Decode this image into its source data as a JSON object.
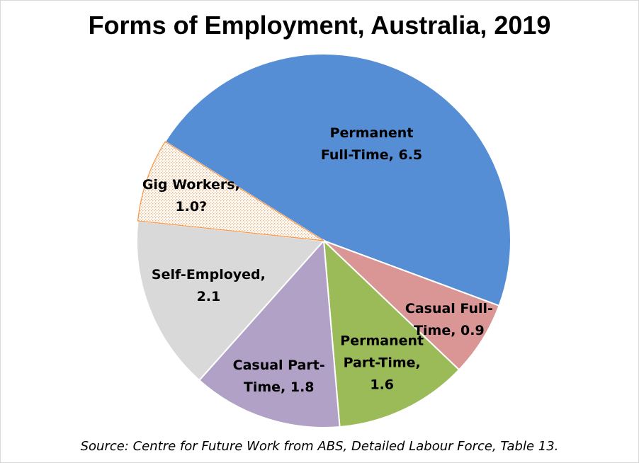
{
  "chart_data": {
    "type": "pie",
    "title": "Forms of Employment, Australia, 2019",
    "source": "Source: Centre for Future Work from ABS, Detailed Labour Force, Table 13.",
    "slices": [
      {
        "label": "Permanent Full-Time, 6.5",
        "lines": [
          "Permanent",
          "Full-Time, 6.5"
        ],
        "value": 6.5,
        "color": "#558ed5",
        "pattern": false
      },
      {
        "label": "Casual Full-Time, 0.9",
        "lines": [
          "Casual Full-",
          "Time, 0.9"
        ],
        "value": 0.9,
        "color": "#d99694",
        "pattern": false
      },
      {
        "label": "Permanent Part-Time, 1.6",
        "lines": [
          "Permanent",
          "Part-Time,",
          "1.6"
        ],
        "value": 1.6,
        "color": "#9bbb59",
        "pattern": false
      },
      {
        "label": "Casual Part-Time, 1.8",
        "lines": [
          "Casual Part-",
          "Time, 1.8"
        ],
        "value": 1.8,
        "color": "#b2a1c7",
        "pattern": false
      },
      {
        "label": "Self-Employed, 2.1",
        "lines": [
          "Self-Employed,",
          "2.1"
        ],
        "value": 2.1,
        "color": "#d9d9d9",
        "pattern": false
      },
      {
        "label": "Gig Workers, 1.0?",
        "lines": [
          "Gig Workers,",
          "1.0?"
        ],
        "value": 1.0,
        "color": "#f79646",
        "pattern": true
      }
    ]
  }
}
